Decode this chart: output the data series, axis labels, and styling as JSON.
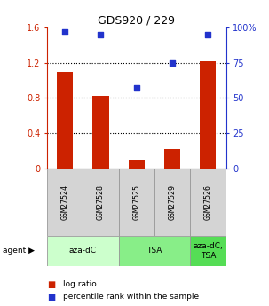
{
  "title": "GDS920 / 229",
  "samples": [
    "GSM27524",
    "GSM27528",
    "GSM27525",
    "GSM27529",
    "GSM27526"
  ],
  "log_ratio": [
    1.1,
    0.82,
    0.1,
    0.22,
    1.22
  ],
  "percentile_rank": [
    97,
    95,
    57,
    75,
    95
  ],
  "bar_color": "#cc2200",
  "dot_color": "#2233cc",
  "ylim_left": [
    0,
    1.6
  ],
  "ylim_right": [
    0,
    100
  ],
  "yticks_left": [
    0,
    0.4,
    0.8,
    1.2,
    1.6
  ],
  "ytick_labels_left": [
    "0",
    "0.4",
    "0.8",
    "1.2",
    "1.6"
  ],
  "yticks_right": [
    0,
    25,
    50,
    75,
    100
  ],
  "ytick_labels_right": [
    "0",
    "25",
    "50",
    "75",
    "100%"
  ],
  "agent_groups": [
    {
      "label": "aza-dC",
      "span": [
        0,
        2
      ],
      "color": "#ccffcc"
    },
    {
      "label": "TSA",
      "span": [
        2,
        4
      ],
      "color": "#88ee88"
    },
    {
      "label": "aza-dC,\nTSA",
      "span": [
        4,
        5
      ],
      "color": "#55dd55"
    }
  ],
  "legend_items": [
    {
      "color": "#cc2200",
      "label": "log ratio"
    },
    {
      "color": "#2233cc",
      "label": "percentile rank within the sample"
    }
  ],
  "bg_color": "#ffffff",
  "xticklabel_gray_bg": "#d4d4d4",
  "dotted_line_color": "#000000"
}
